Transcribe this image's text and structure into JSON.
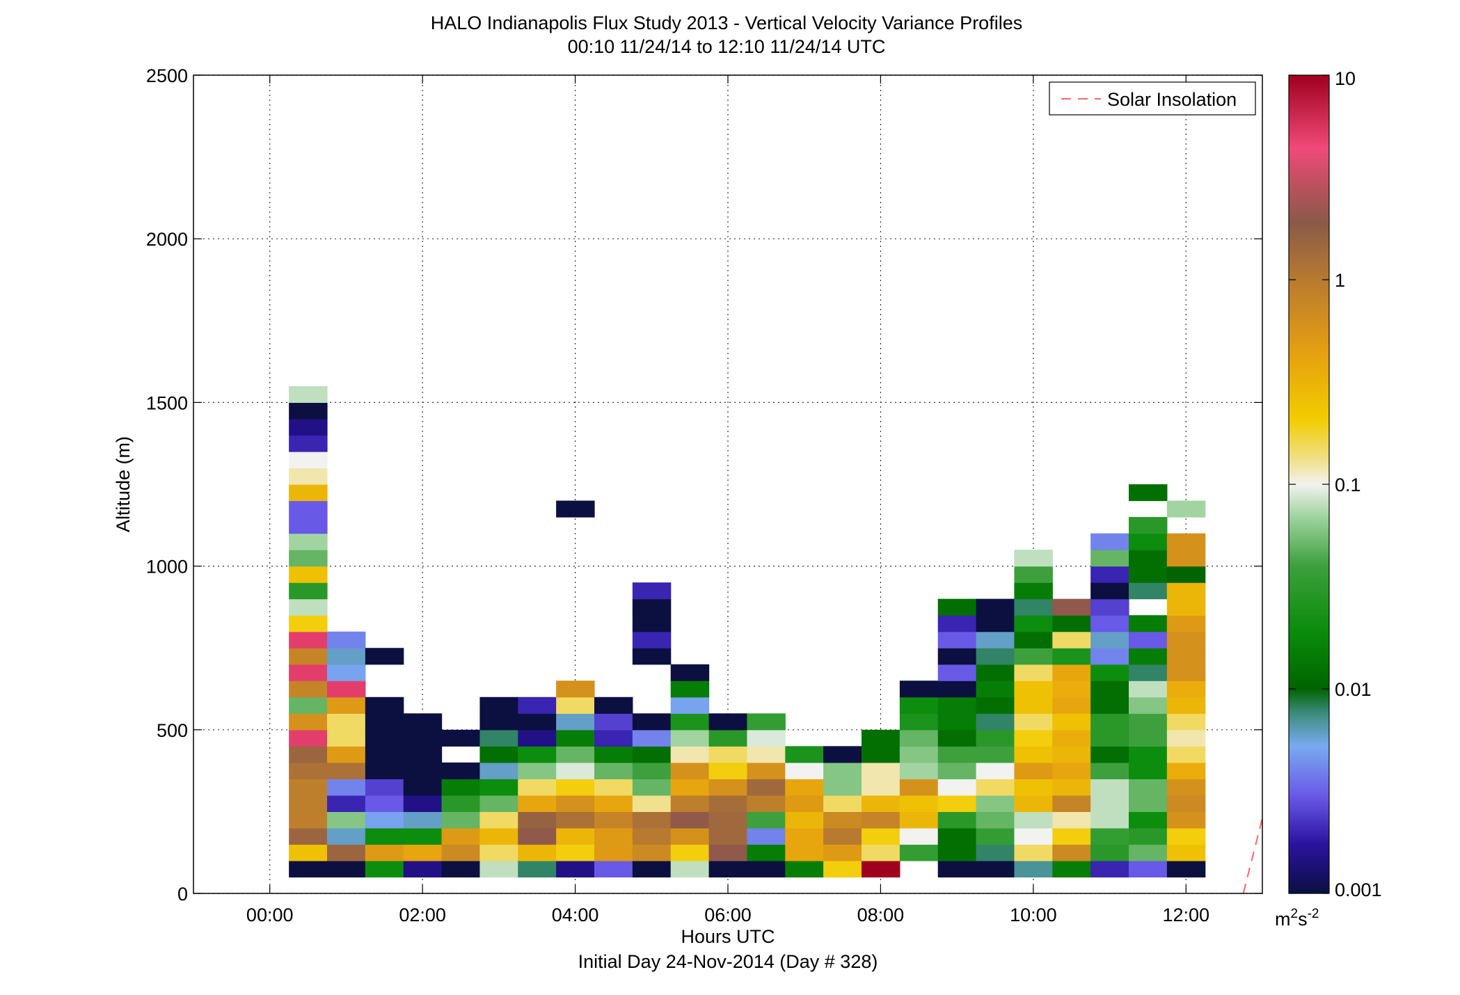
{
  "chart_data": {
    "type": "heatmap",
    "title": "HALO Indianapolis Flux Study 2013 - Vertical Velocity Variance Profiles",
    "subtitle": "00:10 11/24/14 to 12:10 11/24/14  UTC",
    "xlabel": "Hours UTC",
    "xlabel2": "Initial Day 24-Nov-2014 (Day # 328)",
    "ylabel": "Altitude (m)",
    "xlim": [
      -1,
      13
    ],
    "ylim": [
      0,
      2500
    ],
    "x_ticks": [
      0,
      2,
      4,
      6,
      8,
      10,
      12
    ],
    "x_tick_labels": [
      "00:00",
      "02:00",
      "04:00",
      "06:00",
      "08:00",
      "10:00",
      "12:00"
    ],
    "y_ticks": [
      0,
      500,
      1000,
      1500,
      2000,
      2500
    ],
    "y_tick_labels": [
      "0",
      "500",
      "1000",
      "1500",
      "2000",
      "2500"
    ],
    "grid": "dotted",
    "legend": {
      "location": "top-right",
      "entries": [
        {
          "label": "Solar Insolation",
          "style": "dashed",
          "color": "#ff6666"
        }
      ]
    },
    "solar_insolation_line": {
      "x": [
        12.75,
        13.0
      ],
      "y": [
        0,
        230
      ]
    },
    "colorbar": {
      "scale": "log",
      "range": [
        0.001,
        10
      ],
      "tick_values": [
        0.001,
        0.01,
        0.1,
        1,
        10
      ],
      "tick_labels": [
        "0.001",
        "0.01",
        "0.1",
        "1",
        "10"
      ],
      "unit_base": "m",
      "unit_sup1": "2",
      "unit_mid": "s",
      "unit_sup2": "-2"
    },
    "time_bin_hours": 0.5,
    "altitude_bin_m": 50,
    "column_times_h": [
      0.5,
      1.0,
      1.5,
      2.0,
      2.5,
      3.0,
      3.5,
      4.0,
      4.5,
      5.0,
      5.5,
      6.0,
      6.5,
      7.0,
      7.5,
      8.0,
      8.5,
      9.0,
      9.5,
      10.0,
      10.5,
      11.0,
      11.5,
      12.0
    ],
    "profiles": [
      {
        "time": 0.5,
        "base": 75,
        "values": [
          0.001,
          0.25,
          1.5,
          0.9,
          0.9,
          0.9,
          1.2,
          1.5,
          5,
          0.6,
          0.05,
          0.8,
          5,
          0.8,
          5,
          0.2,
          0.08,
          0.03,
          0.25,
          0.05,
          0.07,
          0.003,
          0.003,
          0.3,
          0.12,
          0.1,
          0.002,
          0.0015,
          0.001,
          0.08
        ]
      },
      {
        "time": 1.0,
        "base": 75,
        "values": [
          0.001,
          1.5,
          0.006,
          0.06,
          0.002,
          0.004,
          1.2,
          0.5,
          0.15,
          0.15,
          0.5,
          5,
          0.005,
          0.006,
          0.004
        ]
      },
      {
        "time": 1.5,
        "base": 75,
        "values": [
          0.02,
          0.5,
          0.02,
          0.005,
          0.003,
          0.0025,
          0.001,
          0.001,
          0.001,
          0.001,
          0.001,
          null,
          null,
          0.001
        ]
      },
      {
        "time": 2.0,
        "base": 75,
        "values": [
          0.0015,
          0.4,
          0.02,
          0.006,
          0.0015,
          0.001,
          0.001,
          0.001,
          0.001,
          0.001
        ]
      },
      {
        "time": 2.5,
        "base": 75,
        "values": [
          0.001,
          0.7,
          0.5,
          0.05,
          0.03,
          0.015,
          0.001,
          null,
          0.001
        ]
      },
      {
        "time": 3.0,
        "base": 75,
        "values": [
          0.08,
          0.15,
          0.3,
          0.15,
          0.05,
          0.02,
          0.006,
          0.012,
          0.008,
          0.001,
          0.001
        ]
      },
      {
        "time": 3.5,
        "base": 75,
        "values": [
          0.008,
          0.3,
          2.0,
          1.6,
          0.4,
          0.15,
          0.06,
          0.02,
          0.0015,
          0.001,
          0.002
        ]
      },
      {
        "time": 4.0,
        "base": 75,
        "values": [
          0.0015,
          0.2,
          0.3,
          1.2,
          0.6,
          0.2,
          0.09,
          0.05,
          0.015,
          0.006,
          0.15,
          0.6,
          null,
          null,
          null,
          null,
          null,
          null,
          null,
          null,
          null,
          null,
          0.001
        ]
      },
      {
        "time": 4.5,
        "base": 75,
        "values": [
          0.003,
          0.5,
          0.5,
          0.8,
          0.4,
          0.15,
          0.05,
          0.015,
          0.002,
          0.0025,
          0.001
        ]
      },
      {
        "time": 5.0,
        "base": 75,
        "values": [
          0.001,
          0.7,
          1.0,
          1.2,
          0.13,
          0.05,
          0.04,
          0.012,
          0.004,
          0.001,
          null,
          null,
          null,
          0.001,
          0.002,
          0.001,
          0.001,
          0.002
        ]
      },
      {
        "time": 5.5,
        "base": 75,
        "values": [
          0.08,
          0.2,
          0.6,
          2.0,
          0.9,
          0.4,
          0.6,
          0.12,
          0.07,
          0.025,
          0.005,
          0.015,
          0.001
        ]
      },
      {
        "time": 6.0,
        "base": 75,
        "values": [
          0.001,
          2.0,
          1.4,
          1.4,
          1.3,
          0.6,
          0.2,
          0.15,
          0.03,
          0.001
        ]
      },
      {
        "time": 6.5,
        "base": 75,
        "values": [
          0.001,
          0.015,
          0.004,
          0.04,
          0.9,
          1.4,
          0.6,
          0.12,
          0.09,
          0.035
        ]
      },
      {
        "time": 7.0,
        "base": 75,
        "values": [
          0.015,
          0.4,
          0.4,
          0.3,
          0.5,
          0.4,
          0.1,
          0.025
        ]
      },
      {
        "time": 7.5,
        "base": 75,
        "values": [
          0.2,
          0.5,
          1.0,
          0.7,
          0.15,
          0.06,
          0.06,
          0.001
        ]
      },
      {
        "time": 8.0,
        "base": 75,
        "values": [
          10,
          0.15,
          0.2,
          0.8,
          0.3,
          0.12,
          0.12,
          0.012,
          0.012
        ]
      },
      {
        "time": 8.5,
        "base": 75,
        "values": [
          null,
          0.035,
          0.1,
          0.3,
          0.25,
          0.6,
          0.07,
          0.06,
          0.05,
          0.025,
          0.02,
          0.001
        ]
      },
      {
        "time": 9.0,
        "base": 75,
        "values": [
          0.001,
          0.012,
          0.012,
          0.03,
          0.2,
          0.1,
          0.05,
          0.04,
          0.012,
          0.015,
          0.015,
          0.001,
          0.003,
          0.001,
          0.003,
          0.002,
          0.012
        ]
      },
      {
        "time": 9.5,
        "base": 75,
        "values": [
          0.001,
          0.008,
          0.035,
          0.05,
          0.06,
          0.15,
          0.1,
          0.04,
          0.03,
          0.008,
          0.012,
          0.015,
          0.012,
          0.008,
          0.006,
          0.001,
          0.001
        ]
      },
      {
        "time": 10.0,
        "base": 75,
        "values": [
          0.007,
          0.15,
          0.1,
          0.08,
          0.3,
          0.25,
          0.5,
          0.25,
          0.2,
          0.15,
          0.25,
          0.25,
          0.15,
          0.04,
          0.012,
          0.02,
          0.008,
          0.015,
          0.04,
          0.08
        ]
      },
      {
        "time": 10.5,
        "base": 75,
        "values": [
          0.015,
          0.7,
          0.2,
          0.12,
          0.8,
          0.3,
          0.4,
          0.3,
          0.35,
          0.25,
          0.4,
          0.35,
          0.4,
          0.025,
          0.15,
          0.012,
          2.0
        ]
      },
      {
        "time": 11.0,
        "base": 75,
        "values": [
          0.002,
          0.03,
          0.035,
          0.08,
          0.08,
          0.08,
          0.04,
          0.012,
          0.03,
          0.03,
          0.012,
          0.012,
          0.02,
          0.004,
          0.006,
          0.003,
          0.0025,
          0.001,
          0.002,
          0.05,
          0.004
        ]
      },
      {
        "time": 11.5,
        "base": 75,
        "values": [
          0.003,
          0.05,
          0.03,
          0.02,
          0.05,
          0.05,
          0.02,
          0.02,
          0.04,
          0.04,
          0.06,
          0.08,
          0.008,
          0.015,
          0.003,
          0.015,
          null,
          0.008,
          0.012,
          0.012,
          0.02,
          0.03,
          null,
          0.012
        ]
      },
      {
        "time": 12.0,
        "base": 75,
        "values": [
          0.001,
          0.25,
          0.2,
          0.6,
          0.7,
          0.6,
          0.35,
          0.15,
          0.12,
          0.15,
          0.3,
          0.35,
          0.6,
          0.6,
          0.6,
          0.5,
          0.3,
          0.3,
          0.01,
          0.6,
          0.6,
          null,
          0.07
        ]
      }
    ]
  }
}
